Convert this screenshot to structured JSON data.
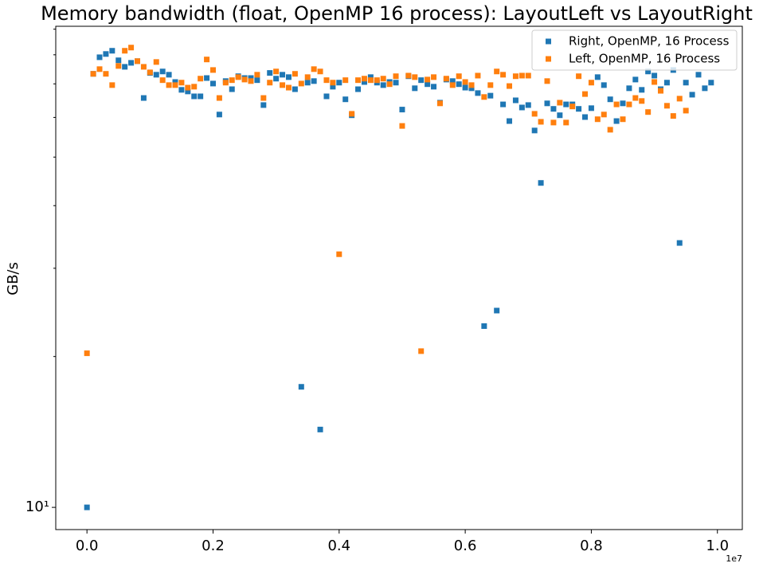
{
  "chart_data": {
    "type": "scatter",
    "title": "Memory bandwidth (float, OpenMP 16 process):  LayoutLeft vs LayoutRight",
    "ylabel": "GB/s",
    "x_offset_label": "1e7",
    "xlim": [
      -495000,
      10395000
    ],
    "ylim": [
      9.03,
      91.2
    ],
    "log_y": true,
    "legend": "upper right",
    "xticks": [
      {
        "value": 0,
        "label": "0.0"
      },
      {
        "value": 2000000,
        "label": "0.2"
      },
      {
        "value": 4000000,
        "label": "0.4"
      },
      {
        "value": 6000000,
        "label": "0.6"
      },
      {
        "value": 8000000,
        "label": "0.8"
      },
      {
        "value": 10000000,
        "label": "1.0"
      }
    ],
    "yticks": [
      {
        "value": 10,
        "label": "10¹"
      }
    ],
    "yminorticks": [
      20,
      30,
      40,
      50,
      60,
      70,
      80,
      90
    ],
    "series": [
      {
        "name": "Right, OpenMP, 16 Process",
        "color": "#1f77b4",
        "x": [
          0,
          100000,
          200000,
          300000,
          400000,
          500000,
          600000,
          700000,
          800000,
          900000,
          1000000,
          1100000,
          1200000,
          1300000,
          1400000,
          1500000,
          1600000,
          1700000,
          1800000,
          1900000,
          2000000,
          2100000,
          2200000,
          2300000,
          2400000,
          2500000,
          2600000,
          2700000,
          2800000,
          2900000,
          3000000,
          3100000,
          3200000,
          3300000,
          3400000,
          3500000,
          3600000,
          3700000,
          3800000,
          3900000,
          4000000,
          4100000,
          4200000,
          4300000,
          4400000,
          4500000,
          4600000,
          4700000,
          4800000,
          4900000,
          5000000,
          5100000,
          5200000,
          5300000,
          5400000,
          5500000,
          5600000,
          5700000,
          5800000,
          5900000,
          6000000,
          6100000,
          6200000,
          6300000,
          6400000,
          6500000,
          6600000,
          6700000,
          6800000,
          6900000,
          7000000,
          7100000,
          7200000,
          7300000,
          7400000,
          7500000,
          7600000,
          7700000,
          7800000,
          7900000,
          8000000,
          8100000,
          8200000,
          8300000,
          8400000,
          8500000,
          8600000,
          8700000,
          8800000,
          8900000,
          9000000,
          9100000,
          9200000,
          9300000,
          9400000,
          9500000,
          9600000,
          9700000,
          9800000,
          9900000
        ],
        "values": [
          10,
          73.3,
          79.1,
          80.3,
          81.5,
          78.0,
          75.7,
          77.1,
          77.7,
          65.6,
          73.6,
          73.0,
          74.1,
          73.0,
          70.6,
          68.1,
          67.6,
          66.1,
          66.1,
          71.9,
          70.1,
          60.8,
          70.9,
          68.3,
          72.5,
          71.9,
          71.9,
          71.2,
          63.5,
          73.6,
          71.7,
          73.0,
          72.2,
          68.3,
          17.4,
          70.4,
          70.9,
          14.3,
          66.1,
          69.1,
          70.4,
          65.2,
          60.6,
          68.3,
          70.6,
          72.2,
          70.4,
          69.6,
          70.6,
          70.4,
          62.2,
          72.5,
          68.6,
          71.2,
          69.9,
          69.1,
          64.2,
          71.4,
          70.9,
          69.9,
          68.8,
          68.6,
          67.1,
          23.0,
          66.3,
          24.7,
          63.7,
          59.0,
          64.9,
          62.8,
          63.5,
          56.5,
          44.4,
          64.0,
          62.4,
          60.6,
          63.7,
          63.7,
          62.4,
          60.1,
          62.6,
          72.2,
          69.6,
          65.2,
          59.0,
          64.0,
          68.6,
          71.4,
          68.1,
          74.1,
          72.7,
          68.3,
          70.4,
          74.6,
          33.7,
          70.4,
          66.6,
          73.0,
          68.6,
          70.4
        ]
      },
      {
        "name": "Left, OpenMP, 16 Process",
        "color": "#ff7f0e",
        "x": [
          0,
          100000,
          200000,
          300000,
          400000,
          500000,
          600000,
          700000,
          800000,
          900000,
          1000000,
          1100000,
          1200000,
          1300000,
          1400000,
          1500000,
          1600000,
          1700000,
          1800000,
          1900000,
          2000000,
          2100000,
          2200000,
          2300000,
          2400000,
          2500000,
          2600000,
          2700000,
          2800000,
          2900000,
          3000000,
          3100000,
          3200000,
          3300000,
          3400000,
          3500000,
          3600000,
          3700000,
          3800000,
          3900000,
          4000000,
          4100000,
          4200000,
          4300000,
          4400000,
          4500000,
          4600000,
          4700000,
          4800000,
          4900000,
          5000000,
          5100000,
          5200000,
          5300000,
          5400000,
          5500000,
          5600000,
          5700000,
          5800000,
          5900000,
          6000000,
          6100000,
          6200000,
          6300000,
          6400000,
          6500000,
          6600000,
          6700000,
          6800000,
          6900000,
          7000000,
          7100000,
          7200000,
          7300000,
          7400000,
          7500000,
          7600000,
          7700000,
          7800000,
          7900000,
          8000000,
          8100000,
          8200000,
          8300000,
          8400000,
          8500000,
          8600000,
          8700000,
          8800000,
          8900000,
          9000000,
          9100000,
          9200000,
          9300000,
          9400000,
          9500000
        ],
        "values": [
          20.3,
          73.3,
          74.9,
          73.3,
          69.6,
          76.0,
          81.5,
          82.7,
          77.7,
          75.7,
          73.8,
          77.4,
          71.2,
          69.6,
          69.6,
          70.4,
          68.8,
          69.1,
          71.7,
          78.3,
          74.6,
          65.6,
          70.4,
          71.2,
          72.2,
          71.4,
          70.9,
          73.0,
          65.6,
          70.4,
          74.1,
          69.6,
          68.8,
          73.3,
          70.1,
          72.2,
          74.9,
          74.1,
          71.2,
          70.4,
          32.0,
          71.2,
          61.0,
          71.2,
          71.7,
          71.2,
          71.2,
          71.7,
          69.9,
          72.5,
          57.7,
          72.7,
          72.2,
          20.5,
          71.4,
          72.2,
          64.0,
          71.7,
          69.6,
          72.5,
          70.6,
          69.6,
          72.7,
          65.9,
          69.6,
          74.1,
          73.0,
          69.3,
          72.5,
          72.7,
          72.7,
          61.0,
          58.8,
          70.9,
          58.6,
          64.2,
          58.6,
          63.1,
          72.5,
          66.8,
          70.4,
          59.5,
          60.8,
          56.7,
          63.7,
          59.5,
          63.7,
          65.6,
          64.7,
          61.5,
          70.6,
          67.8,
          63.3,
          60.4,
          65.4,
          61.9
        ]
      }
    ]
  }
}
